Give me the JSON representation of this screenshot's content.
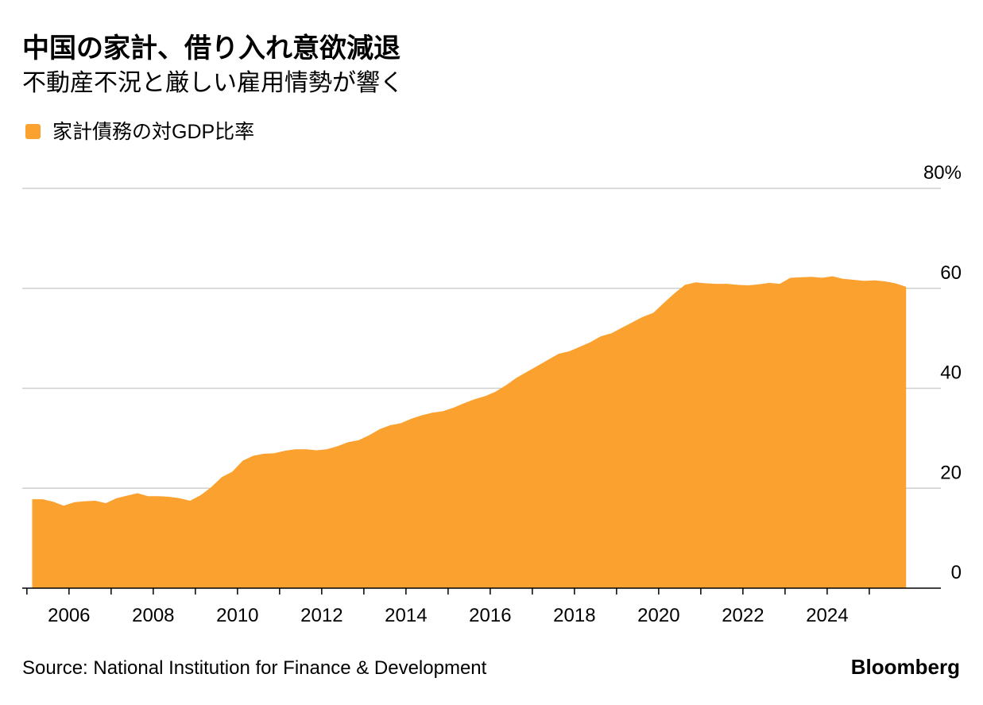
{
  "chart_data": {
    "type": "area",
    "title": "中国の家計、借り入れ意欲減退",
    "subtitle": "不動産不況と厳しい雇用情勢が響く",
    "source": "Source: National Institution for Finance & Development",
    "brand": "Bloomberg",
    "x": [
      2005.125,
      2005.375,
      2005.625,
      2005.875,
      2006.125,
      2006.375,
      2006.625,
      2006.875,
      2007.125,
      2007.375,
      2007.625,
      2007.875,
      2008.125,
      2008.375,
      2008.625,
      2008.875,
      2009.125,
      2009.375,
      2009.625,
      2009.875,
      2010.125,
      2010.375,
      2010.625,
      2010.875,
      2011.125,
      2011.375,
      2011.625,
      2011.875,
      2012.125,
      2012.375,
      2012.625,
      2012.875,
      2013.125,
      2013.375,
      2013.625,
      2013.875,
      2014.125,
      2014.375,
      2014.625,
      2014.875,
      2015.125,
      2015.375,
      2015.625,
      2015.875,
      2016.125,
      2016.375,
      2016.625,
      2016.875,
      2017.125,
      2017.375,
      2017.625,
      2017.875,
      2018.125,
      2018.375,
      2018.625,
      2018.875,
      2019.125,
      2019.375,
      2019.625,
      2019.875,
      2020.125,
      2020.375,
      2020.625,
      2020.875,
      2021.125,
      2021.375,
      2021.625,
      2021.875,
      2022.125,
      2022.375,
      2022.625,
      2022.875,
      2023.125,
      2023.375,
      2023.625,
      2023.875,
      2024.125,
      2024.375,
      2024.625,
      2024.875,
      2025.125,
      2025.375,
      2025.625,
      2025.875
    ],
    "series": [
      {
        "name": "家計債務の対GDP比率",
        "color": "#fba12f",
        "values": [
          17.8,
          17.8,
          17.3,
          16.5,
          17.2,
          17.4,
          17.5,
          17.0,
          18.0,
          18.5,
          19.0,
          18.4,
          18.4,
          18.3,
          18.0,
          17.5,
          18.6,
          20.2,
          22.2,
          23.3,
          25.5,
          26.5,
          26.9,
          27.0,
          27.5,
          27.8,
          27.8,
          27.6,
          27.8,
          28.4,
          29.2,
          29.6,
          30.6,
          31.8,
          32.6,
          33.0,
          33.9,
          34.6,
          35.1,
          35.4,
          36.1,
          37.0,
          37.8,
          38.4,
          39.3,
          40.6,
          42.1,
          43.3,
          44.5,
          45.7,
          46.9,
          47.4,
          48.3,
          49.2,
          50.4,
          51.0,
          52.1,
          53.2,
          54.3,
          55.1,
          57.1,
          59.0,
          60.7,
          61.2,
          61.0,
          60.9,
          60.9,
          60.7,
          60.6,
          60.8,
          61.1,
          60.9,
          62.1,
          62.2,
          62.3,
          62.1,
          62.4,
          61.9,
          61.7,
          61.5,
          61.6,
          61.4,
          61.0,
          60.3
        ]
      }
    ],
    "xlim": [
      2004.89,
      2026.7
    ],
    "xticks": [
      2006,
      2008,
      2010,
      2012,
      2014,
      2016,
      2018,
      2020,
      2022,
      2024
    ],
    "xminor_ticks": [
      2005,
      2006,
      2007,
      2008,
      2009,
      2010,
      2011,
      2012,
      2013,
      2014,
      2015,
      2016,
      2017,
      2018,
      2019,
      2020,
      2021,
      2022,
      2023,
      2024,
      2025
    ],
    "ylim": [
      0,
      80
    ],
    "yticks": [
      0,
      20,
      40,
      60,
      {
        "value": 80,
        "label": "80%"
      }
    ],
    "grid": true
  }
}
